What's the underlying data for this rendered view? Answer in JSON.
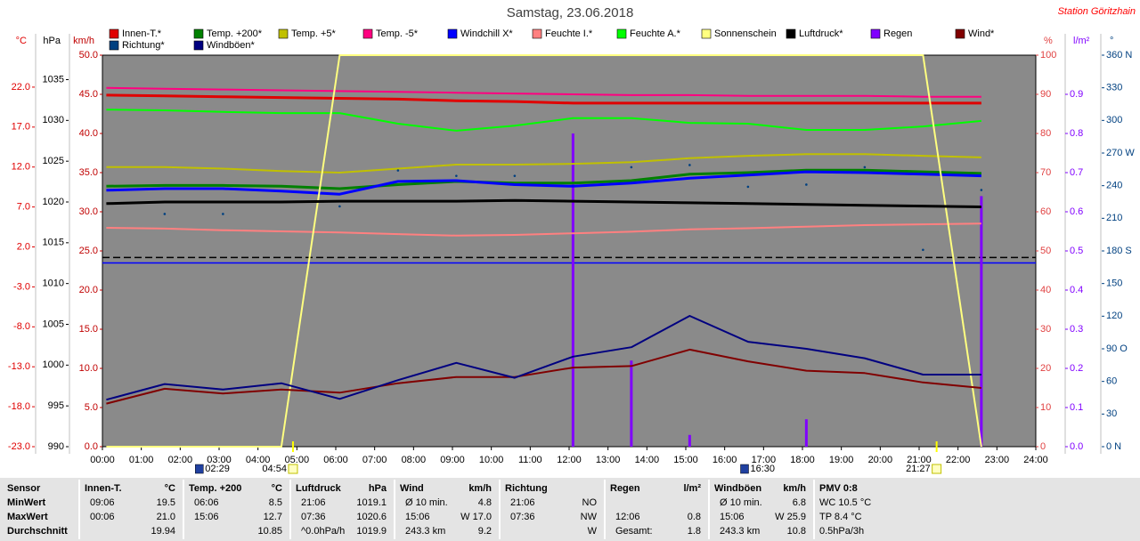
{
  "chart_data": {
    "type": "line",
    "title": "Samstag, 23.06.2018",
    "station": "Station Göritzhain",
    "xlim": [
      0,
      24
    ],
    "xticks": [
      {
        "value": 0,
        "label": "00:00"
      },
      {
        "value": 1,
        "label": "01:00"
      },
      {
        "value": 2,
        "label": "02:00"
      },
      {
        "value": 3,
        "label": "03:00"
      },
      {
        "value": 4,
        "label": "04:00"
      },
      {
        "value": 5,
        "label": "05:00"
      },
      {
        "value": 6,
        "label": "06:00"
      },
      {
        "value": 7,
        "label": "07:00"
      },
      {
        "value": 8,
        "label": "08:00"
      },
      {
        "value": 9,
        "label": "09:00"
      },
      {
        "value": 10,
        "label": "10:00"
      },
      {
        "value": 11,
        "label": "11:00"
      },
      {
        "value": 12,
        "label": "12:00"
      },
      {
        "value": 13,
        "label": "13:00"
      },
      {
        "value": 14,
        "label": "14:00"
      },
      {
        "value": 15,
        "label": "15:00"
      },
      {
        "value": 16,
        "label": "16:00"
      },
      {
        "value": 17,
        "label": "17:00"
      },
      {
        "value": 18,
        "label": "18:00"
      },
      {
        "value": 19,
        "label": "19:00"
      },
      {
        "value": 20,
        "label": "20:00"
      },
      {
        "value": 21,
        "label": "21:00"
      },
      {
        "value": 22,
        "label": "22:00"
      },
      {
        "value": 23,
        "label": "23:00"
      },
      {
        "value": 24,
        "label": "24:00"
      }
    ],
    "grid": false,
    "yaxes": [
      {
        "label": "°C",
        "side": "left",
        "color": "#e00000",
        "lim": [
          -23,
          26
        ],
        "ticks": [
          {
            "value": 22,
            "label": "22.0"
          },
          {
            "value": 17,
            "label": "17.0"
          },
          {
            "value": 12,
            "label": "12.0"
          },
          {
            "value": 7,
            "label": "7.0"
          },
          {
            "value": 2,
            "label": "2.0"
          },
          {
            "value": -3,
            "label": "-3.0"
          },
          {
            "value": -8,
            "label": "-8.0"
          },
          {
            "value": -13,
            "label": "-13.0"
          },
          {
            "value": -18,
            "label": "-18.0"
          },
          {
            "value": -23,
            "label": "-23.0"
          }
        ]
      },
      {
        "label": "hPa",
        "side": "left",
        "color": "#000000",
        "lim": [
          990,
          1038
        ],
        "ticks": [
          1035,
          1030,
          1025,
          1020,
          1015,
          1010,
          1005,
          1000,
          995,
          990
        ]
      },
      {
        "label": "km/h",
        "side": "left",
        "color": "#c00000",
        "lim": [
          0,
          50
        ],
        "ticks": [
          {
            "value": 50,
            "label": "50.0"
          },
          {
            "value": 45,
            "label": "45.0"
          },
          {
            "value": 40,
            "label": "40.0"
          },
          {
            "value": 35,
            "label": "35.0"
          },
          {
            "value": 30,
            "label": "30.0"
          },
          {
            "value": 25,
            "label": "25.0"
          },
          {
            "value": 20,
            "label": "20.0"
          },
          {
            "value": 15,
            "label": "15.0"
          },
          {
            "value": 10,
            "label": "10.0"
          },
          {
            "value": 5,
            "label": "5.0"
          },
          {
            "value": 0,
            "label": "0.0"
          }
        ]
      },
      {
        "label": "%",
        "side": "right",
        "color": "#e04040",
        "lim": [
          0,
          100
        ],
        "ticks": [
          100,
          90,
          80,
          70,
          60,
          50,
          40,
          30,
          20,
          10,
          0
        ]
      },
      {
        "label": "l/m²",
        "side": "right",
        "color": "#8000ff",
        "lim": [
          0,
          1
        ],
        "ticks": [
          {
            "value": 0.9,
            "label": "0.9"
          },
          {
            "value": 0.8,
            "label": "0.8"
          },
          {
            "value": 0.7,
            "label": "0.7"
          },
          {
            "value": 0.6,
            "label": "0.6"
          },
          {
            "value": 0.5,
            "label": "0.5"
          },
          {
            "value": 0.4,
            "label": "0.4"
          },
          {
            "value": 0.3,
            "label": "0.3"
          },
          {
            "value": 0.2,
            "label": "0.2"
          },
          {
            "value": 0.1,
            "label": "0.1"
          },
          {
            "value": 0,
            "label": "0.0"
          }
        ]
      },
      {
        "label": "°",
        "side": "right",
        "color": "#004080",
        "lim": [
          0,
          360
        ],
        "ticks": [
          {
            "value": 360,
            "label": "360 N"
          },
          330,
          300,
          {
            "value": 270,
            "label": "270 W"
          },
          240,
          210,
          {
            "value": 180,
            "label": "180 S"
          },
          150,
          120,
          {
            "value": 90,
            "label": "90 O"
          },
          60,
          30,
          {
            "value": 0,
            "label": "0 N"
          }
        ]
      }
    ],
    "x": [
      0.1,
      1.6,
      3.1,
      4.6,
      6.1,
      7.6,
      9.1,
      10.6,
      12.1,
      13.6,
      15.1,
      16.6,
      18.1,
      19.6,
      21.1,
      22.6
    ],
    "series": [
      {
        "name": "Innen-T.*",
        "color": "#e00000",
        "axis": 0,
        "style": "line",
        "width": 3,
        "values": [
          21.0,
          20.9,
          20.8,
          20.7,
          20.6,
          20.5,
          20.3,
          20.2,
          20.0,
          20.0,
          20.0,
          20.0,
          20.0,
          20.0,
          20.0,
          20.0
        ]
      },
      {
        "name": "Temp. +200*",
        "color": "#008000",
        "axis": 0,
        "style": "line",
        "width": 3,
        "values": [
          9.6,
          9.7,
          9.7,
          9.6,
          9.3,
          9.8,
          10.2,
          10.0,
          10.0,
          10.3,
          11.1,
          11.3,
          11.6,
          11.6,
          11.4,
          11.2
        ]
      },
      {
        "name": "Temp. +5*",
        "color": "#c0c000",
        "axis": 0,
        "style": "line",
        "width": 2,
        "values": [
          12.0,
          12.0,
          11.8,
          11.5,
          11.3,
          11.8,
          12.3,
          12.3,
          12.4,
          12.6,
          13.1,
          13.4,
          13.6,
          13.6,
          13.4,
          13.2
        ]
      },
      {
        "name": "Temp. -5*",
        "color": "#ff0080",
        "axis": 0,
        "style": "line",
        "width": 2,
        "values": [
          21.9,
          21.8,
          21.7,
          21.6,
          21.5,
          21.4,
          21.3,
          21.2,
          21.1,
          21.0,
          21.0,
          20.9,
          20.9,
          20.9,
          20.8,
          20.8
        ]
      },
      {
        "name": "Windchill X*",
        "color": "#0000ff",
        "axis": 0,
        "style": "line",
        "width": 3,
        "values": [
          9.1,
          9.3,
          9.3,
          9.0,
          8.6,
          10.2,
          10.3,
          9.8,
          9.6,
          10.0,
          10.6,
          11.0,
          11.4,
          11.3,
          11.1,
          10.9
        ]
      },
      {
        "name": "Feuchte I.*",
        "color": "#ff8080",
        "axis": 3,
        "style": "line",
        "width": 2,
        "values": [
          55.9,
          55.7,
          55.3,
          55.0,
          54.7,
          54.3,
          53.9,
          54.1,
          54.5,
          54.9,
          55.5,
          55.8,
          56.2,
          56.6,
          56.8,
          57.0
        ]
      },
      {
        "name": "Feuchte A.*",
        "color": "#00ff00",
        "axis": 3,
        "style": "line",
        "width": 2,
        "values": [
          86.1,
          85.9,
          85.5,
          85.2,
          85.2,
          82.5,
          80.7,
          82.0,
          83.9,
          83.9,
          82.7,
          82.5,
          80.9,
          80.9,
          81.8,
          83.2
        ]
      },
      {
        "name": "Sonnenschein",
        "color": "#ffff80",
        "axis": 3,
        "style": "line",
        "width": 2,
        "values": [
          0,
          0,
          0,
          0,
          100,
          100,
          100,
          100,
          100,
          100,
          100,
          100,
          100,
          100,
          100,
          0
        ]
      },
      {
        "name": "Luftdruck*",
        "color": "#000000",
        "axis": 1,
        "style": "line",
        "width": 3,
        "values": [
          1019.8,
          1020.0,
          1020.0,
          1020.0,
          1020.1,
          1020.1,
          1020.1,
          1020.2,
          1020.1,
          1020.0,
          1019.9,
          1019.8,
          1019.7,
          1019.6,
          1019.5,
          1019.4
        ]
      },
      {
        "name": "Regen",
        "color": "#8000ff",
        "axis": 4,
        "style": "bar",
        "values": [
          null,
          null,
          null,
          null,
          null,
          null,
          null,
          null,
          0.8,
          0.22,
          0.03,
          null,
          0.07,
          null,
          null,
          0.64
        ]
      },
      {
        "name": "Wind*",
        "color": "#800000",
        "axis": 2,
        "style": "line",
        "width": 2,
        "values": [
          5.5,
          7.4,
          6.8,
          7.3,
          6.9,
          8.1,
          8.9,
          8.9,
          10.1,
          10.3,
          12.4,
          10.9,
          9.7,
          9.4,
          8.2,
          7.5
        ]
      },
      {
        "name": "Richtung*",
        "color": "#004080",
        "axis": 5,
        "style": "dots",
        "values": [
          null,
          214,
          214,
          null,
          221,
          254,
          249,
          249,
          null,
          257,
          259,
          239,
          241,
          257,
          181,
          236
        ]
      },
      {
        "name": "Windböen*",
        "color": "#000080",
        "axis": 2,
        "style": "line",
        "width": 2,
        "values": [
          6.0,
          8.0,
          7.3,
          8.1,
          6.1,
          8.5,
          10.7,
          8.8,
          11.5,
          12.7,
          16.7,
          13.4,
          12.5,
          11.3,
          9.2,
          9.2
        ]
      }
    ],
    "hlines": [
      {
        "axis": 1,
        "value": 1013.2,
        "color": "#000000",
        "dashed": true
      },
      {
        "axis": 0,
        "value": 0.0,
        "color": "#0000ff",
        "dashed": false
      }
    ],
    "annotations": [
      {
        "label": "02:29",
        "x": 2.48,
        "icon": "moon"
      },
      {
        "label": "04:54",
        "x": 4.9,
        "icon": "sun"
      },
      {
        "label": "16:30",
        "x": 16.5,
        "icon": "moon"
      },
      {
        "label": "21:27",
        "x": 21.45,
        "icon": "sun"
      }
    ]
  },
  "summary_table": {
    "corner": "Sensor",
    "row_labels": [
      "MinWert",
      "MaxWert",
      "Durchschnitt"
    ],
    "columns": [
      {
        "title": "Innen-T.",
        "unit": "°C",
        "cells": [
          [
            "09:06",
            "19.5"
          ],
          [
            "00:06",
            "21.0"
          ],
          [
            null,
            "19.94"
          ]
        ]
      },
      {
        "title": "Temp. +200",
        "unit": "°C",
        "cells": [
          [
            "06:06",
            "8.5"
          ],
          [
            "15:06",
            "12.7"
          ],
          [
            null,
            "10.85"
          ]
        ]
      },
      {
        "title": "Luftdruck",
        "unit": "hPa",
        "cells": [
          [
            "21:06",
            "1019.1"
          ],
          [
            "07:36",
            "1020.6"
          ],
          [
            "^0.0hPa/h",
            "1019.9"
          ]
        ]
      },
      {
        "title": "Wind",
        "unit": "km/h",
        "cells": [
          [
            "Ø 10 min.",
            "4.8"
          ],
          [
            "15:06",
            "W 17.0"
          ],
          [
            "243.3 km",
            "9.2"
          ]
        ]
      },
      {
        "title": "Richtung",
        "cells": [
          [
            "21:06",
            "NO"
          ],
          [
            "07:36",
            "NW"
          ],
          [
            null,
            "W"
          ]
        ]
      },
      {
        "title": "Regen",
        "unit": "l/m²",
        "cells": [
          [
            null,
            null
          ],
          [
            "12:06",
            "0.8"
          ],
          [
            "Gesamt:",
            "1.8"
          ]
        ]
      },
      {
        "title": "Windböen",
        "unit": "km/h",
        "cells": [
          [
            "Ø 10 min.",
            "6.8"
          ],
          [
            "15:06",
            "W 25.9"
          ],
          [
            "243.3 km",
            "10.8"
          ]
        ]
      },
      {
        "title": "PMV 0:8",
        "cells": [
          [
            "WC 10.5 °C"
          ],
          [
            "TP 8.4 °C"
          ],
          [
            "0.5hPa/3h"
          ]
        ]
      }
    ]
  }
}
